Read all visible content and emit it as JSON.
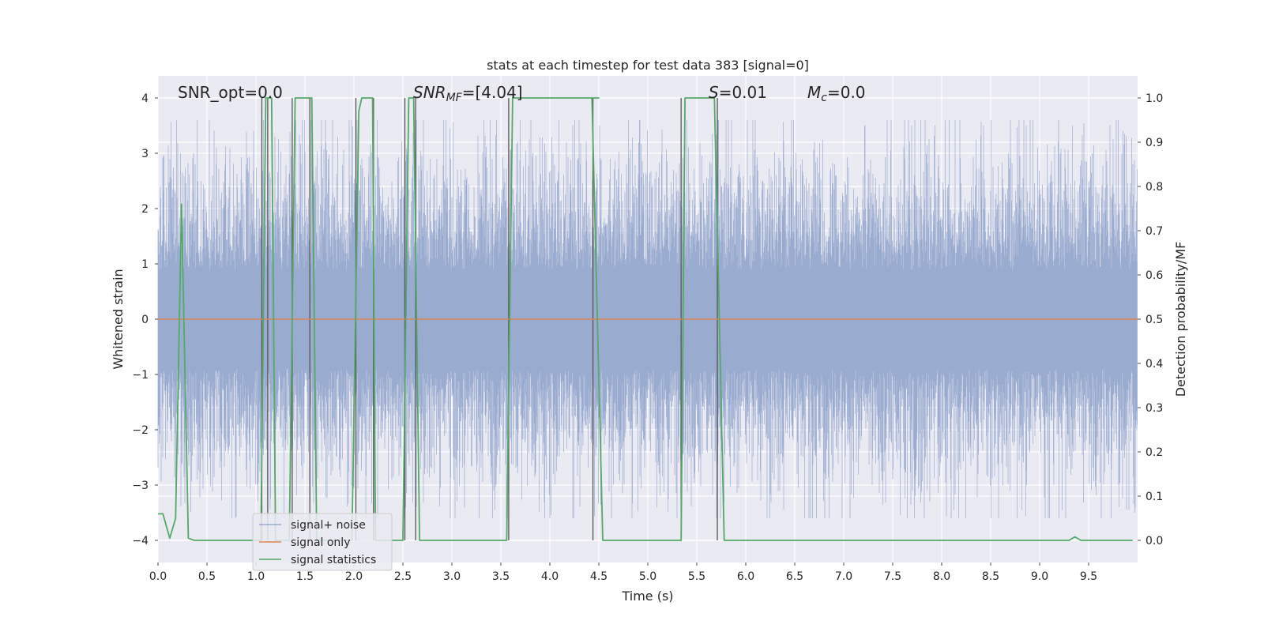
{
  "chart_data": {
    "type": "line",
    "title": "stats at each timestep for test data 383 [signal=0]",
    "xlabel": "Time (s)",
    "ylabel": "Whitened strain",
    "ylabel_right": "Detection probability/MF",
    "xlim": [
      0.0,
      10.0
    ],
    "ylim": [
      -4.4,
      4.4
    ],
    "ylim_right": [
      -0.05,
      1.05
    ],
    "x_ticks": [
      0.0,
      0.5,
      1.0,
      1.5,
      2.0,
      2.5,
      3.0,
      3.5,
      4.0,
      4.5,
      5.0,
      5.5,
      6.0,
      6.5,
      7.0,
      7.5,
      8.0,
      8.5,
      9.0,
      9.5
    ],
    "x_tick_labels": [
      "0.0",
      "0.5",
      "1.0",
      "1.5",
      "2.0",
      "2.5",
      "3.0",
      "3.5",
      "4.0",
      "4.5",
      "5.0",
      "5.5",
      "6.0",
      "6.5",
      "7.0",
      "7.5",
      "8.0",
      "8.5",
      "9.0",
      "9.5"
    ],
    "y_ticks": [
      -4,
      -3,
      -2,
      -1,
      0,
      1,
      2,
      3,
      4
    ],
    "y_tick_labels": [
      "−4",
      "−3",
      "−2",
      "−1",
      "0",
      "1",
      "2",
      "3",
      "4"
    ],
    "y_right_ticks": [
      0.0,
      0.1,
      0.2,
      0.3,
      0.4,
      0.5,
      0.6,
      0.7,
      0.8,
      0.9,
      1.0
    ],
    "y_right_tick_labels": [
      "0.0",
      "0.1",
      "0.2",
      "0.3",
      "0.4",
      "0.5",
      "0.6",
      "0.7",
      "0.8",
      "0.9",
      "1.0"
    ],
    "grid": true,
    "legend_position": "lower-left",
    "annotations": {
      "snr_opt": "SNR_opt=0.0",
      "snr_mf_main": "SNR",
      "snr_mf_sub": "MF",
      "snr_mf_value": "=[4.04]",
      "s_symbol": "S",
      "s_value": "=0.01",
      "mc_main": "M",
      "mc_sub": "c",
      "mc_value": "=0.0"
    },
    "series": [
      {
        "name": "signal+ noise",
        "color": "#9aabd0",
        "axis": "left",
        "style": "dense noise, roughly ±2 typical, peaks near ±3.5"
      },
      {
        "name": "signal only",
        "color": "#dd8452",
        "axis": "left",
        "x": [
          0.0,
          10.0
        ],
        "values": [
          0.0,
          0.0
        ]
      },
      {
        "name": "signal statistics",
        "color": "#55a868",
        "axis": "right",
        "x": [
          0.0,
          0.05,
          0.12,
          0.18,
          0.24,
          0.31,
          0.37,
          0.45,
          1.05,
          1.1,
          1.16,
          1.2,
          1.34,
          1.4,
          1.45,
          1.57,
          1.62,
          1.98,
          2.05,
          2.08,
          2.14,
          2.19,
          2.22,
          2.26,
          2.5,
          2.56,
          2.61,
          2.67,
          3.56,
          3.62,
          4.0,
          4.5,
          4.43,
          4.54,
          4.56,
          5.34,
          5.38,
          5.68,
          5.78,
          5.81,
          9.3,
          9.36,
          9.42,
          9.95
        ],
        "values": [
          0.06,
          0.06,
          0.005,
          0.05,
          0.76,
          0.005,
          0.0,
          0.0,
          0.0,
          1.0,
          1.0,
          0.0,
          0.0,
          1.0,
          1.0,
          1.0,
          0.0,
          0.0,
          0.97,
          1.0,
          1.0,
          1.0,
          0.0,
          0.0,
          0.0,
          1.0,
          1.0,
          0.0,
          0.0,
          1.0,
          1.0,
          1.0,
          1.0,
          0.0,
          0.0,
          0.0,
          1.0,
          1.0,
          0.0,
          0.0,
          0.0,
          0.008,
          0.0,
          0.0
        ]
      }
    ],
    "vertical_markers": {
      "color": "#555555",
      "x": [
        1.06,
        1.12,
        1.37,
        1.55,
        2.02,
        2.2,
        2.52,
        2.63,
        3.58,
        4.44,
        5.34,
        5.71
      ]
    }
  }
}
